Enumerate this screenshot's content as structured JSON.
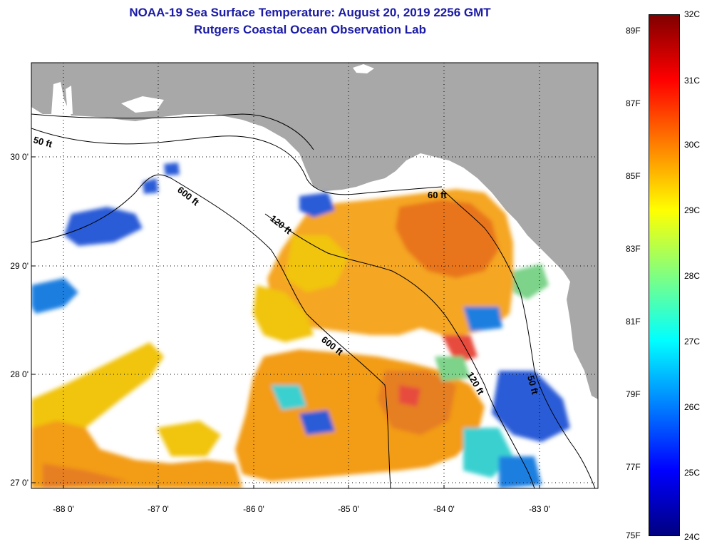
{
  "title": {
    "line1": "NOAA-19 Sea Surface Temperature:  August 20, 2019 2256 GMT",
    "line2": "Rutgers Coastal Ocean Observation Lab"
  },
  "axes": {
    "x_labels": [
      "-88 0'",
      "-87 0'",
      "-86 0'",
      "-85 0'",
      "-84 0'",
      "-83 0'"
    ],
    "y_labels": [
      "30 0'",
      "29 0'",
      "28 0'",
      "27 0'"
    ],
    "grid": "dotted"
  },
  "contours": {
    "labels": [
      "50 ft",
      "600 ft",
      "120 ft",
      "60 ft",
      "600 ft",
      "120 ft",
      "50 ft"
    ]
  },
  "colorbar": {
    "celsius": [
      "32C",
      "31C",
      "30C",
      "29C",
      "28C",
      "27C",
      "26C",
      "25C",
      "24C"
    ],
    "fahrenheit": [
      "89F",
      "87F",
      "85F",
      "83F",
      "81F",
      "79F",
      "77F",
      "75F"
    ],
    "colors": [
      "#000080",
      "#0000ff",
      "#0080ff",
      "#00ffff",
      "#80ff80",
      "#ffff00",
      "#ff8000",
      "#ff0000",
      "#800000"
    ]
  },
  "colors": {
    "land": "#a8a8a8",
    "no_data": "#ffffff",
    "title_text": "#1a1aa6"
  }
}
